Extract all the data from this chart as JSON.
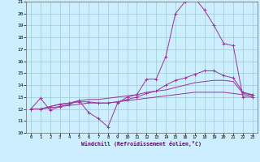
{
  "title": "",
  "xlabel": "Windchill (Refroidissement éolien,°C)",
  "ylabel": "",
  "xlim": [
    -0.5,
    23.5
  ],
  "ylim": [
    10,
    21
  ],
  "yticks": [
    10,
    11,
    12,
    13,
    14,
    15,
    16,
    17,
    18,
    19,
    20,
    21
  ],
  "xticks": [
    0,
    1,
    2,
    3,
    4,
    5,
    6,
    7,
    8,
    9,
    10,
    11,
    12,
    13,
    14,
    15,
    16,
    17,
    18,
    19,
    20,
    21,
    22,
    23
  ],
  "bg_color": "#cceeff",
  "line_color": "#993399",
  "grid_color": "#99cccc",
  "curve1_x": [
    0,
    1,
    2,
    3,
    4,
    5,
    6,
    7,
    8,
    9,
    10,
    11,
    12,
    13,
    14,
    15,
    16,
    17,
    18,
    19,
    20,
    21,
    22,
    23
  ],
  "curve1_y": [
    12.0,
    12.9,
    11.9,
    12.2,
    12.4,
    12.7,
    11.7,
    11.2,
    10.5,
    12.5,
    13.0,
    13.2,
    14.5,
    14.5,
    16.4,
    20.0,
    21.0,
    21.3,
    20.3,
    19.0,
    17.5,
    17.3,
    13.0,
    13.0
  ],
  "curve2_x": [
    0,
    1,
    2,
    3,
    4,
    5,
    6,
    7,
    8,
    9,
    10,
    11,
    12,
    13,
    14,
    15,
    16,
    17,
    18,
    19,
    20,
    21,
    22,
    23
  ],
  "curve2_y": [
    12.0,
    12.0,
    12.2,
    12.4,
    12.5,
    12.6,
    12.6,
    12.5,
    12.5,
    12.6,
    12.8,
    13.0,
    13.3,
    13.5,
    14.0,
    14.4,
    14.6,
    14.9,
    15.2,
    15.2,
    14.8,
    14.6,
    13.4,
    13.2
  ],
  "curve3_x": [
    0,
    1,
    2,
    3,
    4,
    5,
    6,
    7,
    8,
    9,
    10,
    11,
    12,
    13,
    14,
    15,
    16,
    17,
    18,
    19,
    20,
    21,
    22,
    23
  ],
  "curve3_y": [
    12.0,
    12.0,
    12.2,
    12.4,
    12.5,
    12.7,
    12.8,
    12.8,
    12.9,
    13.0,
    13.1,
    13.2,
    13.4,
    13.5,
    13.6,
    13.8,
    14.0,
    14.2,
    14.3,
    14.4,
    14.4,
    14.3,
    13.3,
    13.2
  ],
  "curve4_x": [
    0,
    1,
    2,
    3,
    4,
    5,
    6,
    7,
    8,
    9,
    10,
    11,
    12,
    13,
    14,
    15,
    16,
    17,
    18,
    19,
    20,
    21,
    22,
    23
  ],
  "curve4_y": [
    12.0,
    12.0,
    12.1,
    12.2,
    12.3,
    12.4,
    12.5,
    12.5,
    12.5,
    12.6,
    12.7,
    12.8,
    12.9,
    13.0,
    13.1,
    13.2,
    13.3,
    13.4,
    13.4,
    13.4,
    13.4,
    13.3,
    13.2,
    13.1
  ]
}
